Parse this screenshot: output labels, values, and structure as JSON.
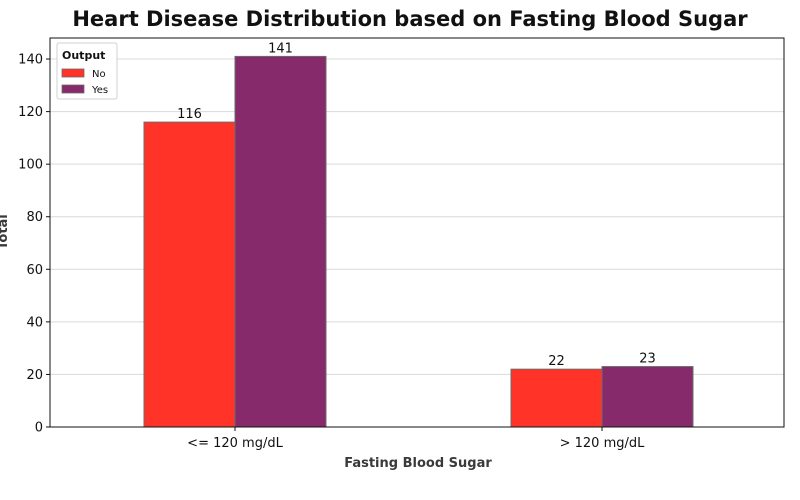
{
  "chart_data": {
    "type": "bar",
    "title": "Heart Disease Distribution based on Fasting Blood Sugar",
    "xlabel": "Fasting Blood Sugar",
    "ylabel": "Total",
    "categories": [
      "<= 120 mg/dL",
      "> 120 mg/dL"
    ],
    "series": [
      {
        "name": "No",
        "values": [
          116,
          22
        ],
        "color": "#ff3328"
      },
      {
        "name": "Yes",
        "values": [
          141,
          23
        ],
        "color": "#862a6b"
      }
    ],
    "ylim": [
      0,
      148
    ],
    "yticks": [
      0,
      20,
      40,
      60,
      80,
      100,
      120,
      140
    ],
    "grid": "y",
    "legend": {
      "title": "Output",
      "position": "top-left"
    },
    "data_labels": true
  }
}
